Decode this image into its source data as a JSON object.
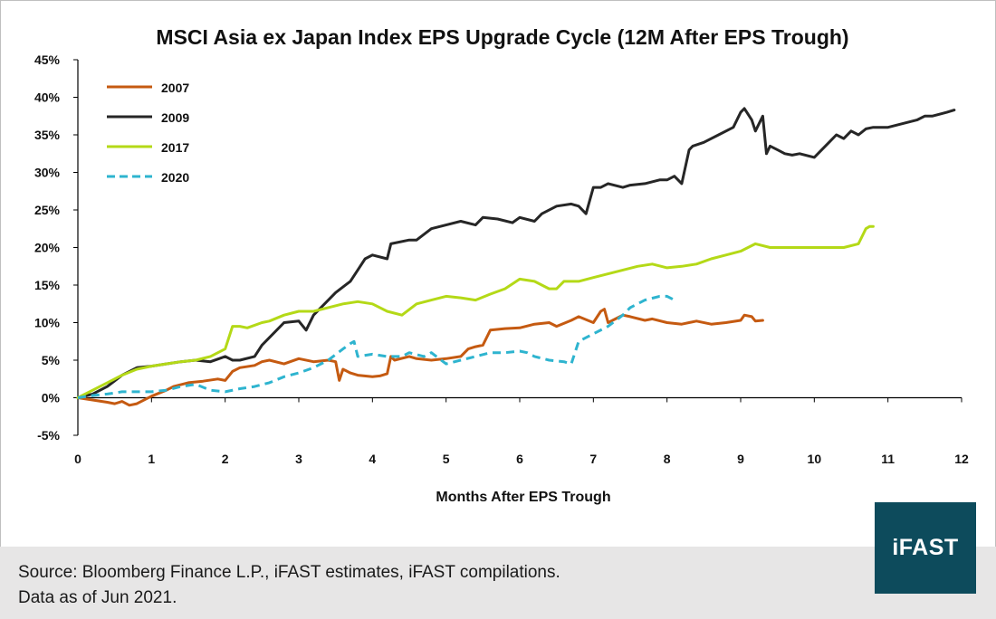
{
  "chart_data": {
    "type": "line",
    "title": "MSCI Asia ex Japan Index EPS Upgrade Cycle (12M After EPS Trough)",
    "xlabel": "Months After EPS Trough",
    "ylabel": "",
    "xlim": [
      0,
      12
    ],
    "ylim": [
      -5,
      45
    ],
    "x_ticks": [
      "0",
      "1",
      "2",
      "3",
      "4",
      "5",
      "6",
      "7",
      "8",
      "9",
      "10",
      "11",
      "12"
    ],
    "y_ticks": [
      "-5%",
      "0%",
      "5%",
      "10%",
      "15%",
      "20%",
      "25%",
      "30%",
      "35%",
      "40%",
      "45%"
    ],
    "y_tick_values": [
      -5,
      0,
      5,
      10,
      15,
      20,
      25,
      30,
      35,
      40,
      45
    ],
    "grid": false,
    "legend_position": "top-left",
    "series": [
      {
        "name": "2007",
        "color": "#c55a11",
        "dash": "solid",
        "x": [
          0,
          0.2,
          0.4,
          0.5,
          0.6,
          0.7,
          0.8,
          1.0,
          1.2,
          1.3,
          1.5,
          1.7,
          1.9,
          2.0,
          2.1,
          2.2,
          2.4,
          2.5,
          2.6,
          2.8,
          3.0,
          3.2,
          3.4,
          3.5,
          3.55,
          3.6,
          3.7,
          3.8,
          4.0,
          4.1,
          4.2,
          4.25,
          4.3,
          4.5,
          4.6,
          4.8,
          5.0,
          5.2,
          5.3,
          5.4,
          5.5,
          5.6,
          5.8,
          6.0,
          6.2,
          6.4,
          6.5,
          6.7,
          6.8,
          7.0,
          7.1,
          7.15,
          7.2,
          7.3,
          7.4,
          7.5,
          7.7,
          7.8,
          8.0,
          8.2,
          8.4,
          8.6,
          8.8,
          9.0,
          9.05,
          9.15,
          9.2,
          9.3
        ],
        "values": [
          0,
          -0.3,
          -0.6,
          -0.8,
          -0.5,
          -1.0,
          -0.8,
          0.2,
          1.0,
          1.5,
          2.0,
          2.2,
          2.5,
          2.3,
          3.5,
          4.0,
          4.3,
          4.8,
          5.0,
          4.5,
          5.2,
          4.8,
          5.0,
          4.8,
          2.3,
          3.8,
          3.3,
          3.0,
          2.8,
          2.9,
          3.2,
          5.5,
          5.0,
          5.5,
          5.2,
          5.0,
          5.2,
          5.5,
          6.5,
          6.8,
          7.0,
          9.0,
          9.2,
          9.3,
          9.8,
          10.0,
          9.5,
          10.3,
          10.8,
          10.0,
          11.5,
          11.8,
          10.0,
          10.5,
          11.0,
          10.8,
          10.3,
          10.5,
          10.0,
          9.8,
          10.2,
          9.8,
          10.0,
          10.3,
          11.0,
          10.8,
          10.2,
          10.3
        ]
      },
      {
        "name": "2009",
        "color": "#262626",
        "dash": "solid",
        "x": [
          0,
          0.2,
          0.4,
          0.6,
          0.8,
          1.0,
          1.2,
          1.4,
          1.6,
          1.8,
          2.0,
          2.1,
          2.2,
          2.4,
          2.5,
          2.6,
          2.8,
          3.0,
          3.1,
          3.2,
          3.3,
          3.5,
          3.7,
          3.8,
          3.9,
          4.0,
          4.2,
          4.25,
          4.5,
          4.6,
          4.8,
          5.0,
          5.2,
          5.4,
          5.5,
          5.7,
          5.9,
          6.0,
          6.2,
          6.3,
          6.5,
          6.7,
          6.8,
          6.9,
          7.0,
          7.1,
          7.2,
          7.4,
          7.5,
          7.7,
          7.9,
          8.0,
          8.1,
          8.2,
          8.3,
          8.35,
          8.5,
          8.7,
          8.9,
          9.0,
          9.05,
          9.15,
          9.2,
          9.3,
          9.35,
          9.4,
          9.5,
          9.6,
          9.7,
          9.8,
          10.0,
          10.1,
          10.2,
          10.3,
          10.4,
          10.5,
          10.6,
          10.7,
          10.8,
          11.0,
          11.2,
          11.4,
          11.5,
          11.6,
          11.8,
          11.9
        ],
        "values": [
          0,
          0.5,
          1.5,
          3.0,
          4.0,
          4.2,
          4.5,
          4.8,
          5.0,
          4.8,
          5.5,
          5.0,
          5.0,
          5.5,
          7.0,
          8.0,
          10.0,
          10.2,
          9.0,
          11.0,
          12.0,
          14.0,
          15.5,
          17.0,
          18.5,
          19.0,
          18.5,
          20.5,
          21.0,
          21.0,
          22.5,
          23.0,
          23.5,
          23.0,
          24.0,
          23.8,
          23.3,
          24.0,
          23.5,
          24.5,
          25.5,
          25.8,
          25.5,
          24.5,
          28.0,
          28.0,
          28.5,
          28.0,
          28.3,
          28.5,
          29.0,
          29.0,
          29.5,
          28.5,
          33.0,
          33.5,
          34.0,
          35.0,
          36.0,
          38.0,
          38.5,
          37.0,
          35.5,
          37.5,
          32.5,
          33.5,
          33.0,
          32.5,
          32.3,
          32.5,
          32.0,
          33.0,
          34.0,
          35.0,
          34.5,
          35.5,
          35.0,
          35.8,
          36.0,
          36.0,
          36.5,
          37.0,
          37.5,
          37.5,
          38.0,
          38.3
        ]
      },
      {
        "name": "2017",
        "color": "#b4d917",
        "dash": "solid",
        "x": [
          0,
          0.2,
          0.4,
          0.6,
          0.8,
          1.0,
          1.2,
          1.4,
          1.6,
          1.8,
          2.0,
          2.1,
          2.2,
          2.3,
          2.5,
          2.6,
          2.8,
          3.0,
          3.2,
          3.4,
          3.6,
          3.8,
          4.0,
          4.2,
          4.4,
          4.6,
          4.8,
          5.0,
          5.2,
          5.4,
          5.6,
          5.8,
          6.0,
          6.2,
          6.4,
          6.5,
          6.6,
          6.8,
          7.0,
          7.2,
          7.4,
          7.6,
          7.8,
          8.0,
          8.2,
          8.4,
          8.6,
          8.8,
          9.0,
          9.2,
          9.4,
          9.6,
          9.8,
          10.0,
          10.2,
          10.4,
          10.6,
          10.7,
          10.75,
          10.8
        ],
        "values": [
          0,
          1.0,
          2.0,
          3.0,
          3.8,
          4.2,
          4.5,
          4.8,
          5.0,
          5.5,
          6.5,
          9.5,
          9.5,
          9.3,
          10.0,
          10.2,
          11.0,
          11.5,
          11.5,
          12.0,
          12.5,
          12.8,
          12.5,
          11.5,
          11.0,
          12.5,
          13.0,
          13.5,
          13.3,
          13.0,
          13.8,
          14.5,
          15.8,
          15.5,
          14.5,
          14.5,
          15.5,
          15.5,
          16.0,
          16.5,
          17.0,
          17.5,
          17.8,
          17.3,
          17.5,
          17.8,
          18.5,
          19.0,
          19.5,
          20.5,
          20.0,
          20.0,
          20.0,
          20.0,
          20.0,
          20.0,
          20.5,
          22.5,
          22.8,
          22.8
        ]
      },
      {
        "name": "2020",
        "color": "#2eb4cf",
        "dash": "dashed",
        "x": [
          0,
          0.2,
          0.4,
          0.6,
          0.8,
          1.0,
          1.2,
          1.4,
          1.6,
          1.8,
          2.0,
          2.2,
          2.4,
          2.6,
          2.8,
          3.0,
          3.2,
          3.4,
          3.6,
          3.7,
          3.75,
          3.8,
          4.0,
          4.2,
          4.4,
          4.5,
          4.7,
          4.8,
          5.0,
          5.2,
          5.4,
          5.6,
          5.8,
          6.0,
          6.1,
          6.2,
          6.4,
          6.6,
          6.7,
          6.8,
          6.9,
          7.0,
          7.2,
          7.4,
          7.5,
          7.7,
          7.9,
          8.0,
          8.1
        ],
        "values": [
          0,
          0.3,
          0.5,
          0.8,
          0.8,
          0.8,
          1.0,
          1.5,
          1.8,
          1.0,
          0.8,
          1.2,
          1.5,
          2.0,
          2.8,
          3.3,
          4.0,
          5.0,
          6.5,
          7.2,
          7.5,
          5.5,
          5.8,
          5.5,
          5.5,
          6.0,
          5.5,
          6.0,
          4.5,
          5.0,
          5.5,
          6.0,
          6.0,
          6.2,
          6.0,
          5.5,
          5.0,
          4.8,
          4.5,
          7.5,
          8.0,
          8.5,
          9.5,
          11.0,
          12.0,
          13.0,
          13.5,
          13.5,
          13.0
        ]
      }
    ]
  },
  "footer": {
    "source_line1": "Source: Bloomberg Finance L.P., iFAST estimates, iFAST compilations.",
    "source_line2": "Data as of Jun 2021.",
    "logo_text": "iFAST"
  }
}
